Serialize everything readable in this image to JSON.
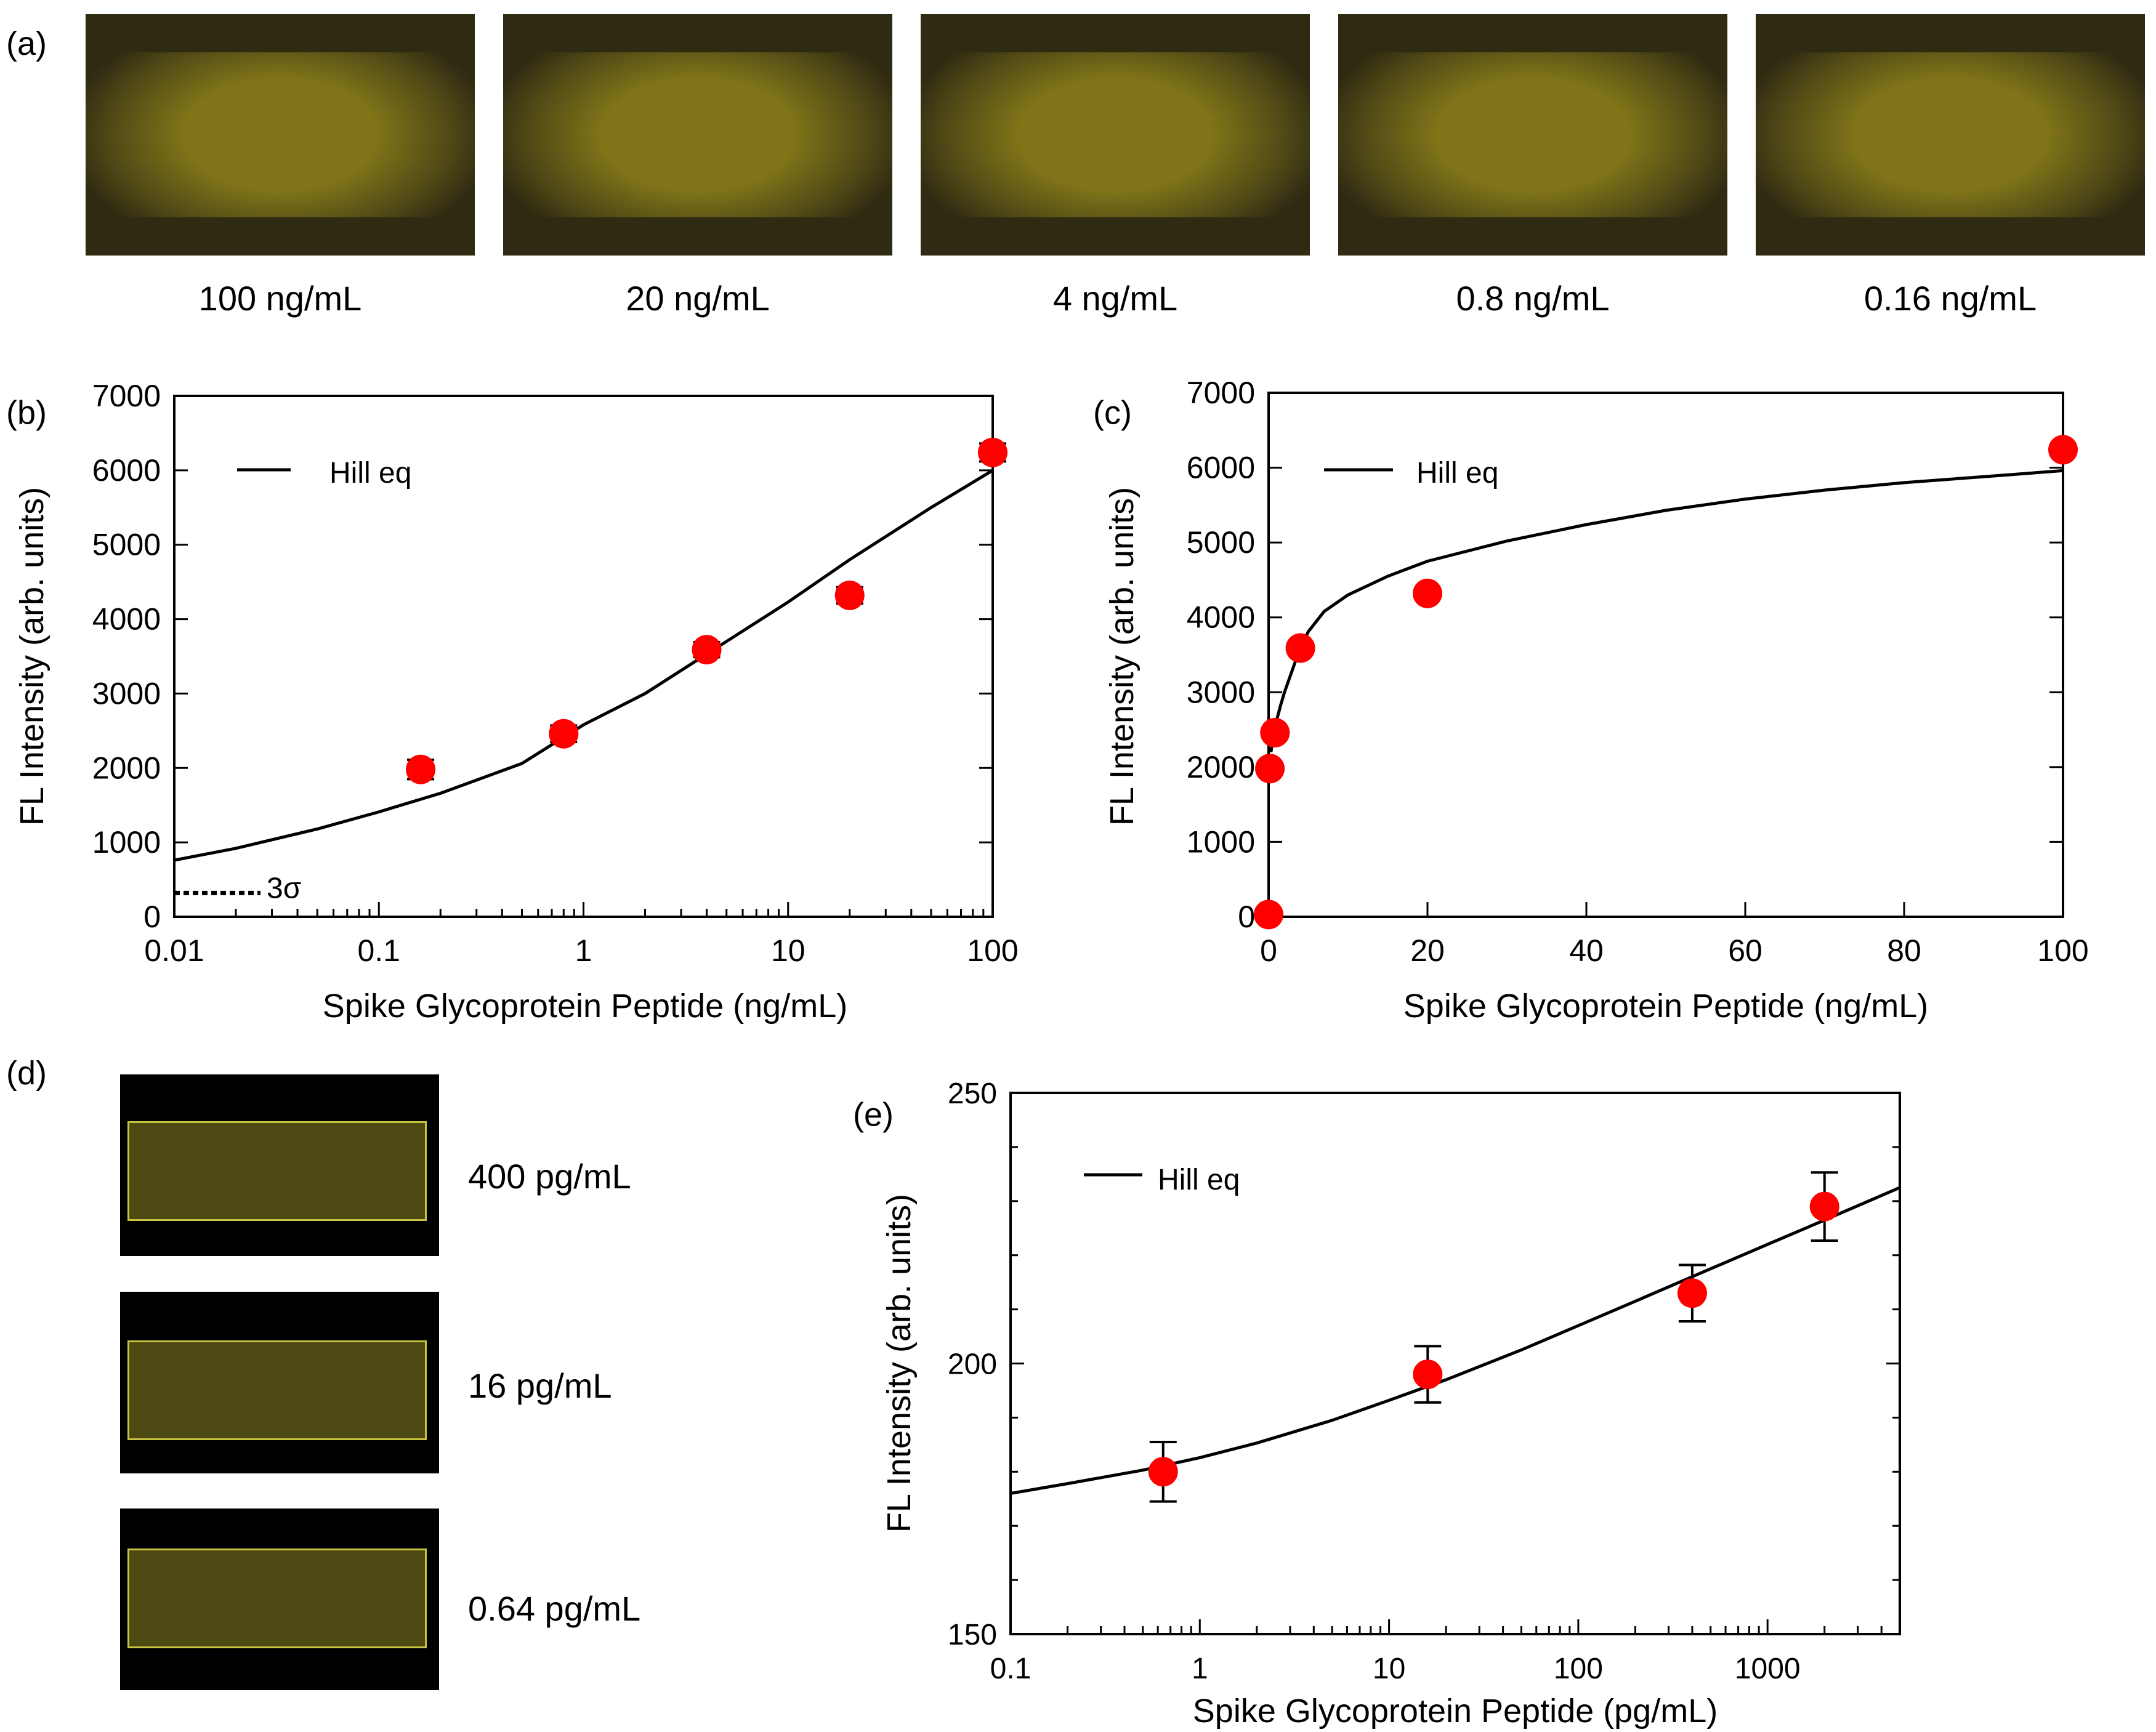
{
  "panel_a": {
    "label": "(a)",
    "images": [
      {
        "caption": "100 ng/mL"
      },
      {
        "caption": "20 ng/mL"
      },
      {
        "caption": "4 ng/mL"
      },
      {
        "caption": "0.8 ng/mL"
      },
      {
        "caption": "0.16 ng/mL"
      }
    ],
    "colors": {
      "frame": "#2f2a12",
      "glow": "#7f7418",
      "glow_edge": "#4f4816"
    }
  },
  "panel_d": {
    "label": "(d)",
    "images": [
      {
        "caption": "400 pg/mL"
      },
      {
        "caption": "16 pg/mL"
      },
      {
        "caption": "0.64 pg/mL"
      }
    ],
    "colors": {
      "frame": "#000000",
      "strip": "#4c4a12",
      "edge": "#c9c441"
    }
  },
  "colors": {
    "marker": "#ff0000",
    "line": "#000000"
  },
  "chart_data": [
    {
      "id": "b",
      "label": "(b)",
      "type": "scatter",
      "xscale": "log",
      "xlim": [
        0.01,
        100
      ],
      "ylim": [
        0,
        7000
      ],
      "xticks": [
        0.01,
        0.1,
        1,
        10,
        100
      ],
      "xtick_labels": [
        "0.01",
        "0.1",
        "1",
        "10",
        "100"
      ],
      "yticks": [
        0,
        1000,
        2000,
        3000,
        4000,
        5000,
        6000,
        7000
      ],
      "ytick_labels": [
        "0",
        "1000",
        "2000",
        "3000",
        "4000",
        "5000",
        "6000",
        "7000"
      ],
      "xlabel": "Spike Glycoprotein Peptide (ng/mL)",
      "ylabel": "FL Intensity (arb. units)",
      "legend": "Hill eq",
      "legend_position": "top-left",
      "series": [
        {
          "name": "data",
          "x": [
            0.16,
            0.8,
            4,
            20,
            100
          ],
          "y": [
            1980,
            2460,
            3590,
            4320,
            6240
          ],
          "err": [
            130,
            110,
            100,
            110,
            120
          ]
        }
      ],
      "fit": {
        "name": "Hill eq",
        "x": [
          0.01,
          0.02,
          0.05,
          0.1,
          0.2,
          0.5,
          1,
          2,
          5,
          10,
          20,
          50,
          100
        ],
        "y": [
          760,
          920,
          1180,
          1410,
          1660,
          2060,
          2580,
          3000,
          3700,
          4230,
          4800,
          5500,
          6000
        ]
      },
      "threshold": {
        "label": "3σ",
        "y": 320
      }
    },
    {
      "id": "c",
      "label": "(c)",
      "type": "scatter",
      "xscale": "linear",
      "xlim": [
        0,
        100
      ],
      "ylim": [
        0,
        7000
      ],
      "xticks": [
        0,
        20,
        40,
        60,
        80,
        100
      ],
      "xtick_labels": [
        "0",
        "20",
        "40",
        "60",
        "80",
        "100"
      ],
      "yticks": [
        0,
        1000,
        2000,
        3000,
        4000,
        5000,
        6000,
        7000
      ],
      "ytick_labels": [
        "0",
        "1000",
        "2000",
        "3000",
        "4000",
        "5000",
        "6000",
        "7000"
      ],
      "xlabel": "Spike Glycoprotein Peptide (ng/mL)",
      "ylabel": "FL Intensity (arb. units)",
      "legend": "Hill eq",
      "legend_position": "top-left",
      "series": [
        {
          "name": "data",
          "x": [
            0,
            0.16,
            0.8,
            4,
            20,
            100
          ],
          "y": [
            30,
            1980,
            2460,
            3590,
            4320,
            6240
          ]
        }
      ],
      "fit": {
        "name": "Hill eq",
        "x": [
          0.3,
          0.6,
          1,
          1.5,
          2,
          3,
          4,
          5,
          7,
          10,
          15,
          20,
          30,
          40,
          50,
          60,
          70,
          80,
          90,
          100
        ],
        "y": [
          2200,
          2450,
          2620,
          2820,
          3000,
          3300,
          3600,
          3810,
          4080,
          4300,
          4550,
          4750,
          5020,
          5240,
          5430,
          5580,
          5700,
          5800,
          5880,
          5960
        ]
      }
    },
    {
      "id": "e",
      "label": "(e)",
      "type": "scatter",
      "xscale": "log",
      "xlim": [
        0.1,
        5000
      ],
      "ylim": [
        150,
        250
      ],
      "xticks": [
        0.1,
        1,
        10,
        100,
        1000
      ],
      "xtick_labels": [
        "0.1",
        "1",
        "10",
        "100",
        "1000"
      ],
      "yticks": [
        150,
        200,
        250
      ],
      "ytick_labels": [
        "150",
        "200",
        "250"
      ],
      "yminor": [
        160,
        170,
        180,
        190,
        210,
        220,
        230,
        240
      ],
      "xlabel": "Spike Glycoprotein Peptide (pg/mL)",
      "ylabel": "FL Intensity (arb. units)",
      "legend": "Hill eq",
      "legend_position": "top-left",
      "series": [
        {
          "name": "data",
          "x": [
            0.64,
            16,
            400,
            2000
          ],
          "y": [
            180,
            198,
            213,
            229
          ],
          "err": [
            5.5,
            5.2,
            5.2,
            6.3
          ]
        }
      ],
      "fit": {
        "name": "Hill eq",
        "x": [
          0.1,
          0.2,
          0.5,
          1,
          2,
          5,
          10,
          20,
          50,
          100,
          200,
          500,
          1000,
          2000,
          5000
        ],
        "y": [
          176,
          177.8,
          180.3,
          182.6,
          185.3,
          189.5,
          193.2,
          197,
          202.5,
          207,
          211.5,
          217.5,
          222,
          226.5,
          232.5
        ]
      }
    }
  ]
}
